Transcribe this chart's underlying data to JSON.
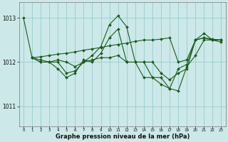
{
  "bg_color": "#cce8e8",
  "line_color": "#1a5c1a",
  "grid_color": "#99cccc",
  "ylabel_ticks": [
    1011,
    1012,
    1013
  ],
  "xlabel_label": "Graphe pression niveau de la mer (hPa)",
  "xlim": [
    -0.5,
    23.5
  ],
  "ylim": [
    1010.55,
    1013.35
  ],
  "figsize": [
    3.2,
    2.0
  ],
  "dpi": 100,
  "series": [
    {
      "x": [
        0,
        1,
        2,
        3,
        4,
        5,
        6,
        7,
        8,
        9,
        10,
        11,
        12,
        13,
        14,
        15,
        16,
        17,
        18,
        19,
        20,
        21,
        22,
        23
      ],
      "y": [
        1013.0,
        1012.1,
        1012.0,
        1012.0,
        1011.85,
        1011.65,
        1011.75,
        1012.05,
        1012.0,
        1012.2,
        1012.55,
        1012.75,
        1012.0,
        1012.0,
        1011.65,
        1011.65,
        1011.5,
        1011.4,
        1011.85,
        1011.95,
        1012.5,
        1012.55,
        1012.5,
        1012.5
      ]
    },
    {
      "x": [
        1,
        2,
        3,
        4,
        5,
        6,
        7,
        8,
        9,
        10,
        11,
        12,
        13,
        14,
        15,
        16,
        17,
        18,
        19,
        20,
        21,
        22,
        23
      ],
      "y": [
        1012.1,
        1012.12,
        1012.15,
        1012.18,
        1012.2,
        1012.23,
        1012.27,
        1012.3,
        1012.33,
        1012.37,
        1012.4,
        1012.43,
        1012.47,
        1012.5,
        1012.5,
        1012.52,
        1012.55,
        1012.0,
        1012.05,
        1012.5,
        1012.55,
        1012.52,
        1012.5
      ]
    },
    {
      "x": [
        1,
        2,
        3,
        4,
        5,
        6,
        7,
        8,
        9,
        10,
        11,
        12,
        13,
        14,
        15,
        16,
        17,
        18,
        19,
        20,
        21,
        22,
        23
      ],
      "y": [
        1012.1,
        1012.0,
        1012.0,
        1012.0,
        1011.75,
        1011.8,
        1012.0,
        1012.15,
        1012.35,
        1012.85,
        1013.05,
        1012.8,
        1012.0,
        1012.0,
        1012.0,
        1011.75,
        1011.6,
        1011.75,
        1011.85,
        1012.5,
        1012.65,
        1012.5,
        1012.5
      ]
    },
    {
      "x": [
        1,
        2,
        3,
        4,
        5,
        6,
        7,
        8,
        9,
        10,
        11,
        12,
        13,
        14,
        15,
        16,
        17,
        18,
        19,
        20,
        21,
        22,
        23
      ],
      "y": [
        1012.1,
        1012.05,
        1012.0,
        1012.05,
        1012.0,
        1011.9,
        1012.0,
        1012.05,
        1012.1,
        1012.1,
        1012.15,
        1012.0,
        1012.0,
        1012.0,
        1011.65,
        1011.65,
        1011.4,
        1011.35,
        1011.9,
        1012.15,
        1012.5,
        1012.5,
        1012.45
      ]
    }
  ]
}
